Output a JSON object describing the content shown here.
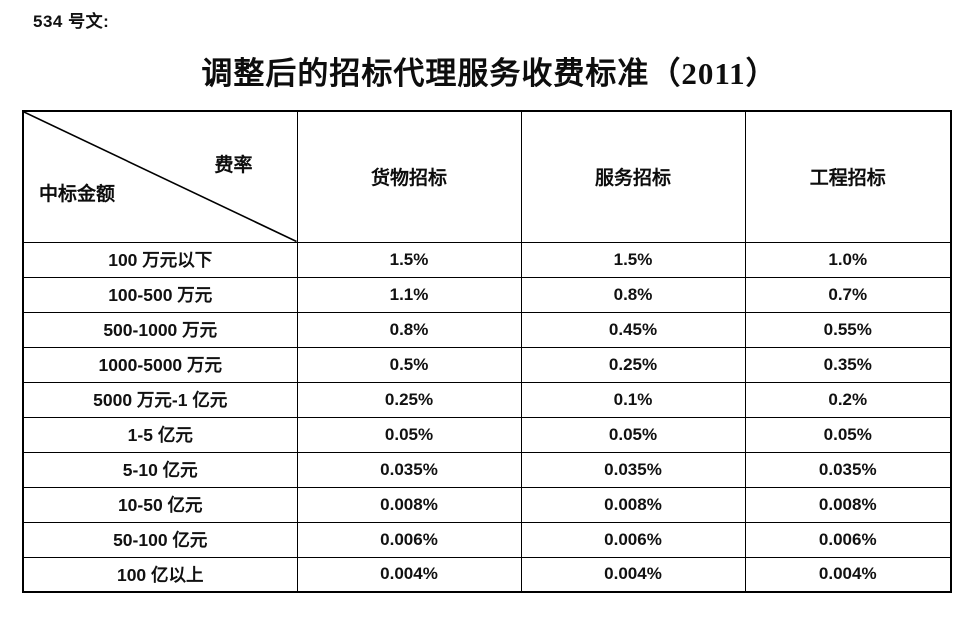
{
  "doc": {
    "doc_number": "534 号文:",
    "title": "调整后的招标代理服务收费标准（2011）"
  },
  "table": {
    "corner": {
      "top_right": "费率",
      "bottom_left": "中标金额"
    },
    "columns": [
      "货物招标",
      "服务招标",
      "工程招标"
    ],
    "rows": [
      {
        "label": "100 万元以下",
        "values": [
          "1.5%",
          "1.5%",
          "1.0%"
        ]
      },
      {
        "label": "100-500 万元",
        "values": [
          "1.1%",
          "0.8%",
          "0.7%"
        ]
      },
      {
        "label": "500-1000 万元",
        "values": [
          "0.8%",
          "0.45%",
          "0.55%"
        ]
      },
      {
        "label": "1000-5000 万元",
        "values": [
          "0.5%",
          "0.25%",
          "0.35%"
        ]
      },
      {
        "label": "5000 万元-1 亿元",
        "values": [
          "0.25%",
          "0.1%",
          "0.2%"
        ]
      },
      {
        "label": "1-5 亿元",
        "values": [
          "0.05%",
          "0.05%",
          "0.05%"
        ]
      },
      {
        "label": "5-10 亿元",
        "values": [
          "0.035%",
          "0.035%",
          "0.035%"
        ]
      },
      {
        "label": "10-50 亿元",
        "values": [
          "0.008%",
          "0.008%",
          "0.008%"
        ]
      },
      {
        "label": "50-100 亿元",
        "values": [
          "0.006%",
          "0.006%",
          "0.006%"
        ]
      },
      {
        "label": "100 亿以上",
        "values": [
          "0.004%",
          "0.004%",
          "0.004%"
        ]
      }
    ]
  },
  "colors": {
    "text": "#111111",
    "border": "#000000",
    "background": "#ffffff"
  }
}
